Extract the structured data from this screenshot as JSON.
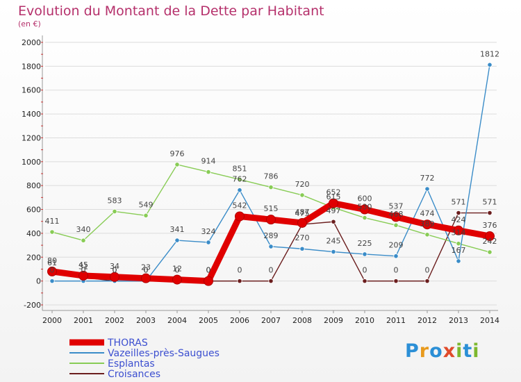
{
  "title": "Evolution du Montant de la Dette par Habitant",
  "subtitle": "(en €)",
  "logo": {
    "text": "Proxiti",
    "letters": [
      {
        "ch": "P",
        "color": "#2b8fd6"
      },
      {
        "ch": "r",
        "color": "#e89a1d"
      },
      {
        "ch": "o",
        "color": "#2b8fd6"
      },
      {
        "ch": "x",
        "color": "#e04a2a"
      },
      {
        "ch": "i",
        "color": "#7db82e"
      },
      {
        "ch": "t",
        "color": "#2b8fd6"
      },
      {
        "ch": "i",
        "color": "#7db82e"
      }
    ]
  },
  "chart_data": {
    "type": "line",
    "x": [
      "2000",
      "2001",
      "2002",
      "2003",
      "2004",
      "2005",
      "2006",
      "2007",
      "2008",
      "2009",
      "2010",
      "2011",
      "2012",
      "2013",
      "2014"
    ],
    "ylim": [
      -200,
      2000
    ],
    "yticks": [
      "-200",
      "0",
      "200",
      "400",
      "600",
      "800",
      "1000",
      "1200",
      "1400",
      "1600",
      "1800",
      "2000"
    ],
    "grid": true,
    "legend_position": "bottom-left",
    "series": [
      {
        "name": "THORAS",
        "color": "#e00000",
        "values": [
          80,
          45,
          34,
          23,
          12,
          0,
          542,
          515,
          487,
          652,
          600,
          537,
          474,
          424,
          376
        ],
        "labels": [
          "80",
          "45",
          "34",
          "23",
          "12",
          "0",
          "542",
          "515",
          "487",
          "652",
          "600",
          "537",
          "474",
          "424",
          "376"
        ]
      },
      {
        "name": "Vazeilles-près-Saugues",
        "color": "#3a8cc8",
        "values": [
          0,
          0,
          0,
          0,
          341,
          324,
          762,
          289,
          270,
          245,
          225,
          209,
          772,
          167,
          1812
        ],
        "labels": [
          "0",
          "0",
          "0",
          "0",
          "341",
          "324",
          "762",
          "289",
          "270",
          "245",
          "225",
          "209",
          "772",
          "167",
          "1812"
        ]
      },
      {
        "name": "Esplantas",
        "color": "#88cc55",
        "values": [
          411,
          340,
          583,
          549,
          976,
          914,
          851,
          786,
          720,
          615,
          530,
          468,
          389,
          314,
          242
        ],
        "labels": [
          "411",
          "340",
          "583",
          "549",
          "976",
          "914",
          "851",
          "786",
          "720",
          "615",
          "530",
          "468",
          "389",
          "314",
          "242"
        ]
      },
      {
        "name": "Croisances",
        "color": "#6b1e1e",
        "values": [
          61,
          31,
          0,
          0,
          0,
          0,
          0,
          0,
          475,
          497,
          0,
          0,
          0,
          571,
          571
        ],
        "labels": [
          "61",
          "31",
          "0",
          "0",
          "0",
          "0",
          "0",
          "0",
          "475",
          "497",
          "0",
          "0",
          "0",
          "571",
          "571"
        ]
      }
    ]
  }
}
